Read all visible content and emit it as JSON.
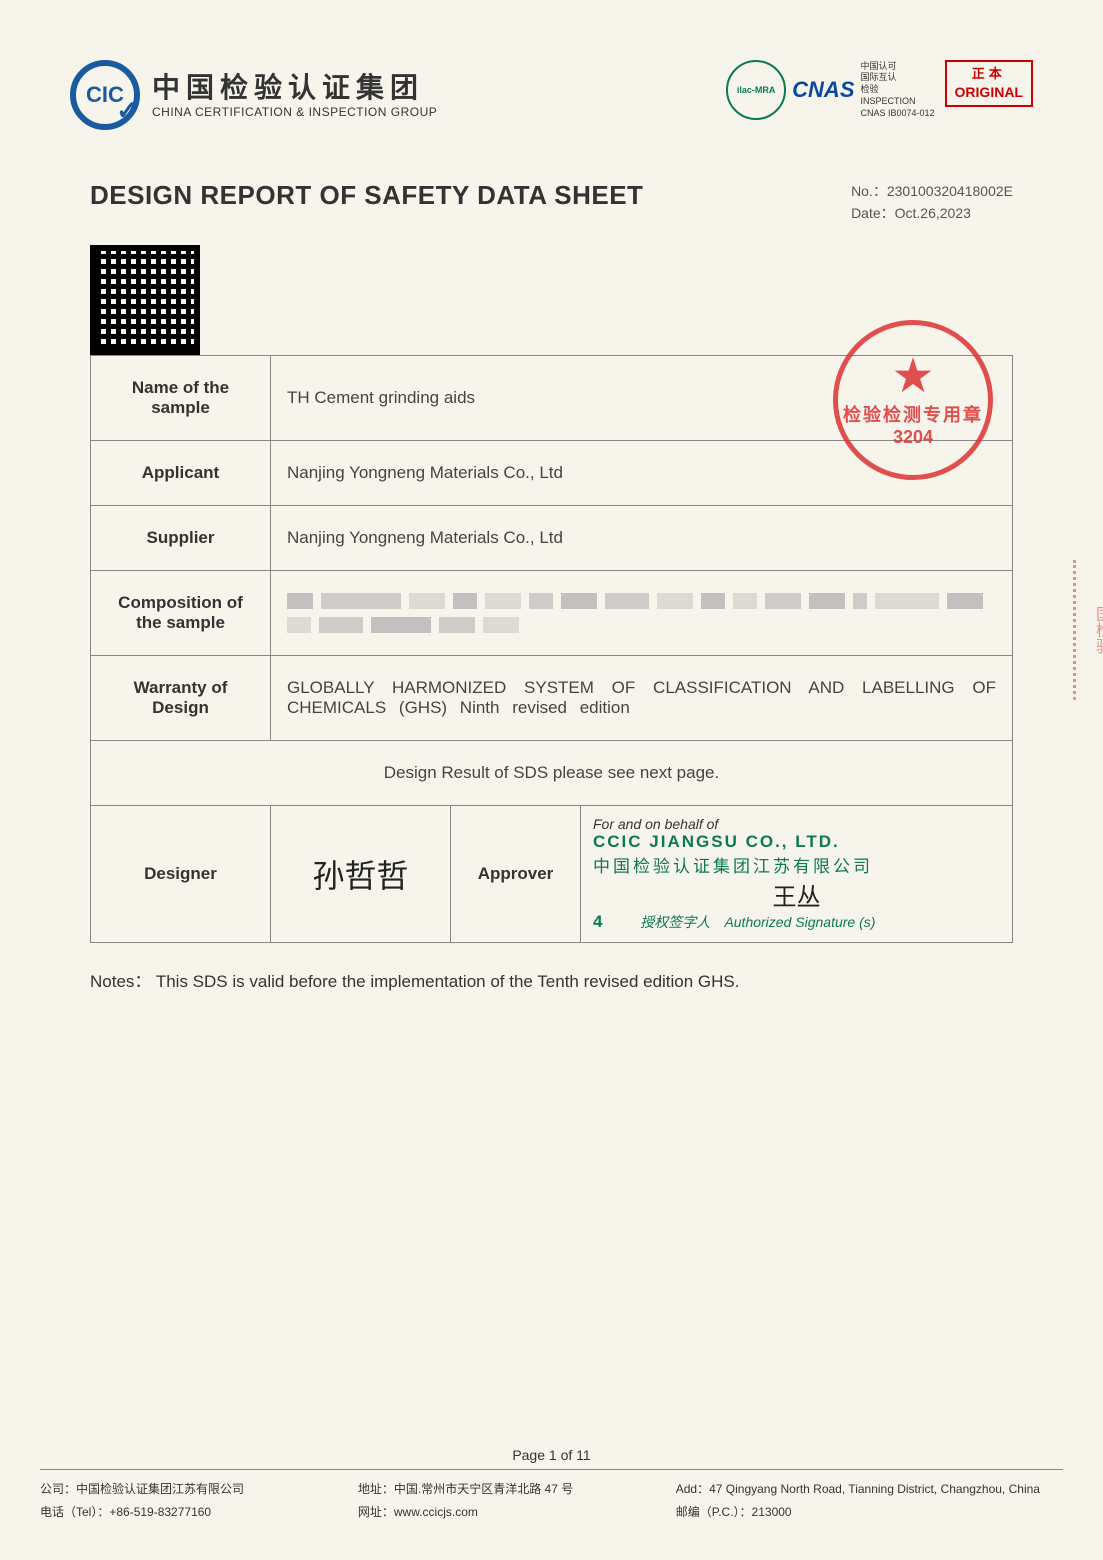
{
  "header": {
    "cic_abbrev": "CIC",
    "logo_cn": "中国检验认证集团",
    "logo_en": "CHINA CERTIFICATION & INSPECTION GROUP",
    "ilac": "ilac-MRA",
    "cnas": "CNAS",
    "cnas_text_line1": "中国认可",
    "cnas_text_line2": "国际互认",
    "cnas_text_line3": "检验",
    "cnas_text_line4": "INSPECTION",
    "cnas_code": "CNAS IB0074-012",
    "original_cn": "正本",
    "original_en": "ORIGINAL"
  },
  "title": "DESIGN REPORT OF SAFETY DATA SHEET",
  "meta": {
    "no_label": "No.：",
    "no_value": "230100320418002E",
    "date_label": "Date：",
    "date_value": "Oct.26,2023"
  },
  "stamp": {
    "line1": "检验检测专用章",
    "line2": "3204"
  },
  "table": {
    "name_label": "Name of the sample",
    "name_value": "TH Cement grinding aids",
    "applicant_label": "Applicant",
    "applicant_value": "Nanjing Yongneng Materials Co., Ltd",
    "supplier_label": "Supplier",
    "supplier_value": "Nanjing Yongneng Materials Co., Ltd",
    "composition_label": "Composition of the sample",
    "warranty_label": "Warranty of Design",
    "warranty_value": "GLOBALLY HARMONIZED SYSTEM OF CLASSIFICATION AND LABELLING OF CHEMICALS (GHS) Ninth revised edition",
    "result_text": "Design Result of SDS please see next page.",
    "designer_label": "Designer",
    "approver_label": "Approver",
    "on_behalf": "For and on behalf of",
    "company_en": "CCIC JIANGSU CO., LTD.",
    "company_cn": "中国检验认证集团江苏有限公司",
    "authorized_cn": "授权签字人",
    "authorized_en": "Authorized Signature (s)",
    "page_inline": "4",
    "designer_sig": "孙哲哲",
    "approver_sig": "王丛"
  },
  "redaction": {
    "widths": [
      26,
      80,
      36,
      24,
      36,
      24,
      36,
      44,
      36,
      24,
      24,
      36,
      36,
      14,
      64,
      36,
      24,
      44,
      60,
      36,
      36
    ]
  },
  "notes": {
    "label": "Notes：",
    "text": "This SDS is valid before the implementation of the Tenth revised edition GHS."
  },
  "side_stamp": "国检验",
  "footer": {
    "page_text": "Page 1 of 11",
    "company_cn": "公司：中国检验认证集团江苏有限公司",
    "tel": "电话（Tel）：+86-519-83277160",
    "address_cn": "地址：中国.常州市天宁区青洋北路 47 号",
    "website": "网址：www.ccicjs.com",
    "address_en": "Add：47 Qingyang North Road, Tianning District, Changzhou, China",
    "postcode": "邮编（P.C.）：213000"
  }
}
